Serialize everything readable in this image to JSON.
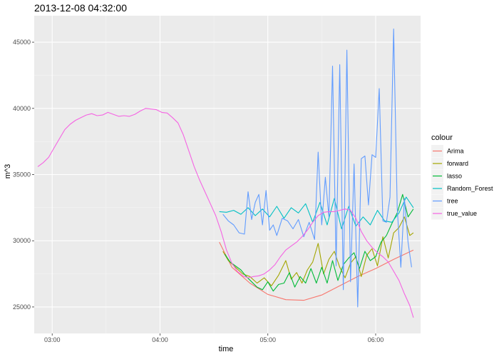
{
  "chart_data": {
    "type": "line",
    "title": "2013-12-08 04:32:00",
    "xlabel": "time",
    "ylabel": "m^3",
    "xlim": [
      "02:50",
      "06:25"
    ],
    "ylim": [
      23000,
      47000
    ],
    "x_ticks": [
      "03:00",
      "04:00",
      "05:00",
      "06:00"
    ],
    "y_ticks": [
      25000,
      30000,
      35000,
      40000,
      45000
    ],
    "grid": true,
    "legend": {
      "title": "colour",
      "position": "right"
    },
    "series": [
      {
        "name": "Arima",
        "color": "#F8766D",
        "x": [
          "04:33",
          "04:40",
          "04:50",
          "05:00",
          "05:10",
          "05:20",
          "05:30",
          "05:40",
          "05:50",
          "06:00",
          "06:10",
          "06:21"
        ],
        "y": [
          29900,
          28000,
          26800,
          25950,
          25550,
          25500,
          25900,
          26600,
          27300,
          27900,
          28600,
          29300
        ]
      },
      {
        "name": "forward",
        "color": "#A3A500",
        "x": [
          "04:35",
          "04:38",
          "04:42",
          "04:46",
          "04:50",
          "04:54",
          "04:58",
          "05:02",
          "05:06",
          "05:10",
          "05:13",
          "05:16",
          "05:19",
          "05:22",
          "05:25",
          "05:28",
          "05:31",
          "05:34",
          "05:37",
          "05:40",
          "05:43",
          "05:46",
          "05:49",
          "05:52",
          "05:55",
          "05:58",
          "06:01",
          "06:04",
          "06:07",
          "06:10",
          "06:13",
          "06:16",
          "06:19",
          "06:21"
        ],
        "y": [
          29200,
          28500,
          28000,
          27500,
          27300,
          26800,
          27200,
          26600,
          27400,
          28500,
          27100,
          27600,
          26800,
          27800,
          28400,
          29800,
          27500,
          28600,
          29200,
          28000,
          27200,
          28300,
          28800,
          27300,
          28900,
          29400,
          28100,
          30300,
          28700,
          30600,
          31000,
          31800,
          30400,
          30600
        ]
      },
      {
        "name": "lasso",
        "color": "#00BA38",
        "x": [
          "04:36",
          "04:39",
          "04:42",
          "04:45",
          "04:48",
          "04:51",
          "04:54",
          "04:57",
          "05:00",
          "05:03",
          "05:06",
          "05:09",
          "05:12",
          "05:15",
          "05:18",
          "05:21",
          "05:24",
          "05:27",
          "05:30",
          "05:33",
          "05:36",
          "05:39",
          "05:42",
          "05:45",
          "05:48",
          "05:51",
          "05:54",
          "05:57",
          "06:00",
          "06:03",
          "06:06",
          "06:09",
          "06:12",
          "06:15",
          "06:18",
          "06:21"
        ],
        "y": [
          29000,
          28400,
          28100,
          27800,
          27300,
          26900,
          26500,
          26300,
          26900,
          26200,
          26700,
          26800,
          27600,
          26500,
          27300,
          26800,
          27900,
          26800,
          28000,
          26800,
          28500,
          27000,
          28200,
          28700,
          29100,
          27900,
          29200,
          28500,
          28800,
          29900,
          30400,
          31300,
          32100,
          33500,
          31800,
          32400
        ]
      },
      {
        "name": "Random_Forest",
        "color": "#00BFC4",
        "x": [
          "04:33",
          "04:37",
          "04:41",
          "04:45",
          "04:49",
          "04:53",
          "04:57",
          "05:01",
          "05:05",
          "05:09",
          "05:13",
          "05:17",
          "05:21",
          "05:25",
          "05:29",
          "05:33",
          "05:37",
          "05:41",
          "05:45",
          "05:49",
          "05:53",
          "05:57",
          "06:01",
          "06:05",
          "06:09",
          "06:13",
          "06:17",
          "06:21"
        ],
        "y": [
          32200,
          32150,
          32300,
          32000,
          32500,
          31900,
          32400,
          31800,
          32600,
          31700,
          32500,
          32100,
          32800,
          31400,
          32900,
          31200,
          33200,
          30900,
          32600,
          31100,
          31800,
          31200,
          32300,
          31500,
          31400,
          32100,
          33300,
          32500
        ]
      },
      {
        "name": "tree",
        "color": "#619CFF",
        "x": [
          "04:35",
          "04:38",
          "04:41",
          "04:44",
          "04:47",
          "04:49",
          "04:51",
          "04:53",
          "04:55",
          "04:57",
          "04:59",
          "05:01",
          "05:03",
          "05:05",
          "05:08",
          "05:11",
          "05:14",
          "05:17",
          "05:20",
          "05:23",
          "05:26",
          "05:28",
          "05:30",
          "05:32",
          "05:34",
          "05:36",
          "05:38",
          "05:40",
          "05:42",
          "05:44",
          "05:46",
          "05:48",
          "05:50",
          "05:52",
          "05:54",
          "05:56",
          "05:58",
          "06:00",
          "06:02",
          "06:04",
          "06:06",
          "06:08",
          "06:10",
          "06:12",
          "06:14",
          "06:16",
          "06:18",
          "06:20"
        ],
        "y": [
          32000,
          31500,
          31200,
          30600,
          30500,
          33700,
          31600,
          32900,
          33500,
          31200,
          33800,
          30800,
          31200,
          30400,
          31700,
          31500,
          30900,
          31600,
          30300,
          31400,
          30100,
          36700,
          31200,
          34800,
          31800,
          43200,
          28100,
          43300,
          26300,
          44400,
          26900,
          35800,
          25000,
          36200,
          36400,
          32700,
          36500,
          36300,
          41500,
          31500,
          31400,
          33300,
          46000,
          32500,
          28000,
          33200,
          29900,
          28000
        ]
      },
      {
        "name": "true_value",
        "color": "#F564E3",
        "x": [
          "02:52",
          "02:55",
          "02:58",
          "03:01",
          "03:04",
          "03:07",
          "03:10",
          "03:13",
          "03:16",
          "03:19",
          "03:22",
          "03:25",
          "03:28",
          "03:31",
          "03:34",
          "03:37",
          "03:40",
          "03:43",
          "03:46",
          "03:49",
          "03:52",
          "03:55",
          "03:58",
          "04:01",
          "04:04",
          "04:07",
          "04:10",
          "04:13",
          "04:16",
          "04:19",
          "04:22",
          "04:25",
          "04:28",
          "04:31",
          "04:34",
          "04:37",
          "04:40",
          "04:43",
          "04:46",
          "04:49",
          "04:52",
          "04:55",
          "04:58",
          "05:01",
          "05:04",
          "05:07",
          "05:10",
          "05:13",
          "05:16",
          "05:19",
          "05:22",
          "05:25",
          "05:28",
          "05:31",
          "05:34",
          "05:37",
          "05:40",
          "05:43",
          "05:46",
          "05:49",
          "05:52",
          "05:55",
          "05:58",
          "06:01",
          "06:04",
          "06:07",
          "06:10",
          "06:13",
          "06:16",
          "06:19",
          "06:21"
        ],
        "y": [
          35600,
          35900,
          36300,
          37000,
          37700,
          38400,
          38800,
          39100,
          39300,
          39500,
          39600,
          39450,
          39500,
          39700,
          39550,
          39400,
          39450,
          39400,
          39550,
          39800,
          40000,
          39950,
          39900,
          39700,
          39650,
          39300,
          38900,
          38000,
          36800,
          35600,
          34600,
          33700,
          32800,
          31900,
          30700,
          29300,
          28300,
          27700,
          27350,
          27200,
          27300,
          27350,
          27500,
          27800,
          28200,
          28800,
          29300,
          29600,
          29900,
          30300,
          30800,
          31400,
          31900,
          32150,
          32200,
          32200,
          32300,
          32400,
          32300,
          31700,
          30700,
          30000,
          29500,
          29100,
          28800,
          28400,
          27700,
          27000,
          26000,
          25100,
          24200
        ]
      }
    ]
  }
}
